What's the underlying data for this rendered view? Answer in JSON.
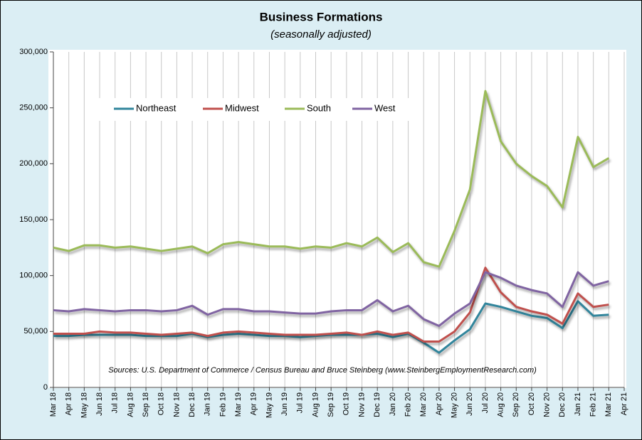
{
  "chart_data": {
    "type": "line",
    "title": "Business Formations",
    "subtitle": "(seasonally adjusted)",
    "annotation": "Sources: U.S. Department of Commerce / Census Bureau and Bruce Steinberg (www.SteinbergEmploymentResearch.com)",
    "categories": [
      "Mar 18",
      "Apr 18",
      "May 18",
      "Jun 18",
      "Jul 18",
      "Aug 18",
      "Sep 18",
      "Oct 18",
      "Nov 18",
      "Dec 18",
      "Jan 19",
      "Feb 19",
      "Mar 19",
      "Apr 19",
      "May 19",
      "Jun 19",
      "Jul 19",
      "Aug 19",
      "Sep 19",
      "Oct 19",
      "Nov 19",
      "Dec 19",
      "Jan 20",
      "Feb 20",
      "Mar 20",
      "Apr 20",
      "May 20",
      "Jun 20",
      "Jul 20",
      "Aug 20",
      "Sep 20",
      "Oct 20",
      "Nov 20",
      "Dec 20",
      "Jan 21",
      "Feb 21",
      "Mar 21",
      "Apr 21"
    ],
    "series": [
      {
        "name": "Northeast",
        "color": "#31859c",
        "values": [
          46000,
          46000,
          47000,
          47000,
          47000,
          47000,
          46000,
          46000,
          46000,
          48000,
          45000,
          47000,
          48000,
          47000,
          46000,
          46000,
          45000,
          46000,
          47000,
          47000,
          47000,
          48000,
          45000,
          48000,
          40000,
          31000,
          42000,
          52000,
          75000,
          72000,
          68000,
          64000,
          62000,
          53000,
          77000,
          64000,
          65000,
          null
        ]
      },
      {
        "name": "Midwest",
        "color": "#c0504d",
        "values": [
          48000,
          48000,
          48000,
          50000,
          49000,
          49000,
          48000,
          47000,
          48000,
          49000,
          46000,
          49000,
          50000,
          49000,
          48000,
          47000,
          47000,
          47000,
          48000,
          49000,
          47000,
          50000,
          47000,
          49000,
          41000,
          41000,
          50000,
          67000,
          107000,
          85000,
          72000,
          68000,
          65000,
          57000,
          84000,
          72000,
          74000,
          null
        ]
      },
      {
        "name": "South",
        "color": "#9bbb59",
        "values": [
          125000,
          122000,
          127000,
          127000,
          125000,
          126000,
          124000,
          122000,
          124000,
          126000,
          120000,
          128000,
          130000,
          128000,
          126000,
          126000,
          124000,
          126000,
          125000,
          129000,
          126000,
          134000,
          121000,
          129000,
          112000,
          108000,
          140000,
          177000,
          265000,
          220000,
          200000,
          189000,
          180000,
          161000,
          224000,
          197000,
          205000,
          null
        ]
      },
      {
        "name": "West",
        "color": "#8064a2",
        "values": [
          69000,
          68000,
          70000,
          69000,
          68000,
          69000,
          69000,
          68000,
          69000,
          73000,
          65000,
          70000,
          70000,
          68000,
          68000,
          67000,
          66000,
          66000,
          68000,
          69000,
          69000,
          78000,
          68000,
          73000,
          61000,
          55000,
          66000,
          75000,
          103000,
          98000,
          91000,
          87000,
          84000,
          72000,
          103000,
          91000,
          95000,
          null
        ]
      }
    ],
    "ylim": [
      0,
      300000
    ],
    "yticks": [
      0,
      {
        "value": 50000,
        "label": "50,000"
      },
      {
        "value": 100000,
        "label": "100,000"
      },
      {
        "value": 150000,
        "label": "150,000"
      },
      {
        "value": 200000,
        "label": "200,000"
      },
      {
        "value": 250000,
        "label": "250,000"
      },
      {
        "value": 300000,
        "label": "300,000"
      }
    ],
    "grid": true,
    "legend": "top-left"
  }
}
